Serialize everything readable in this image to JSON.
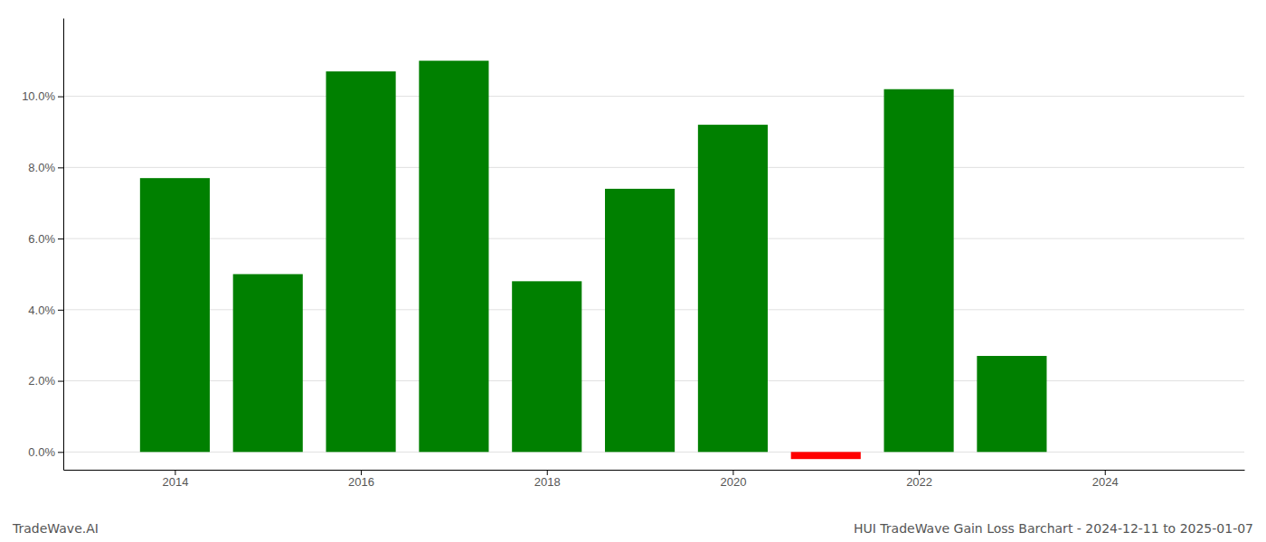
{
  "chart_data": {
    "type": "bar",
    "title": "HUI TradeWave Gain Loss Barchart - 2024-12-11 to 2025-01-07",
    "annotations": [
      "TradeWave.AI"
    ],
    "x": [
      2014,
      2015,
      2016,
      2017,
      2018,
      2019,
      2020,
      2021,
      2022,
      2023
    ],
    "values": [
      0.077,
      0.05,
      0.107,
      0.11,
      0.048,
      0.074,
      0.092,
      -0.002,
      0.102,
      0.027
    ],
    "colors": [
      "#008000",
      "#008000",
      "#008000",
      "#008000",
      "#008000",
      "#008000",
      "#008000",
      "#ff0000",
      "#008000",
      "#008000"
    ],
    "xlim": [
      2012.8,
      2025.5
    ],
    "xticks": [
      2014,
      2016,
      2018,
      2020,
      2022,
      2024
    ],
    "ylim": [
      -0.005,
      0.122
    ],
    "yticks": [
      {
        "value": 0.0,
        "label": "0.0%"
      },
      {
        "value": 0.02,
        "label": "2.0%"
      },
      {
        "value": 0.04,
        "label": "4.0%"
      },
      {
        "value": 0.06,
        "label": "6.0%"
      },
      {
        "value": 0.08,
        "label": "8.0%"
      },
      {
        "value": 0.1,
        "label": "10.0%"
      }
    ],
    "grid": true
  }
}
